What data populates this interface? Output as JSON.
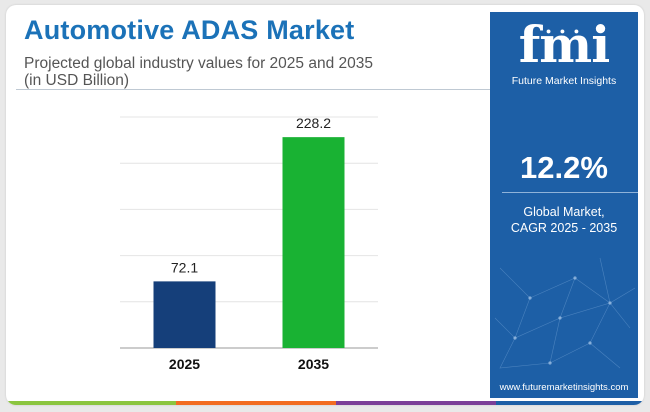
{
  "header": {
    "title": "Automotive ADAS Market",
    "subtitle_line1": "Projected global industry values for 2025 and 2035",
    "subtitle_line2": "(in USD Billion)"
  },
  "chart_data": {
    "type": "bar",
    "categories": [
      "2025",
      "2035"
    ],
    "values": [
      72.1,
      228.2
    ],
    "data_labels": [
      "72.1",
      "228.2"
    ],
    "bar_colors": [
      "#153f7a",
      "#19b233"
    ],
    "ylim": [
      0,
      250
    ],
    "grid": true,
    "xlabel": "",
    "ylabel": ""
  },
  "sidebar": {
    "logo_text": "fmi",
    "brand_name": "Future Market Insights",
    "cagr_value": "12.2%",
    "cagr_label_line1": "Global Market,",
    "cagr_label_line2": "CAGR 2025 - 2035",
    "website": "www.futuremarketinsights.com"
  },
  "colors": {
    "title": "#1b72b8",
    "panel": "#1d5fa6",
    "footer": [
      "#8bc53f",
      "#f26c21",
      "#7b3f98",
      "#1d5fa6"
    ]
  }
}
